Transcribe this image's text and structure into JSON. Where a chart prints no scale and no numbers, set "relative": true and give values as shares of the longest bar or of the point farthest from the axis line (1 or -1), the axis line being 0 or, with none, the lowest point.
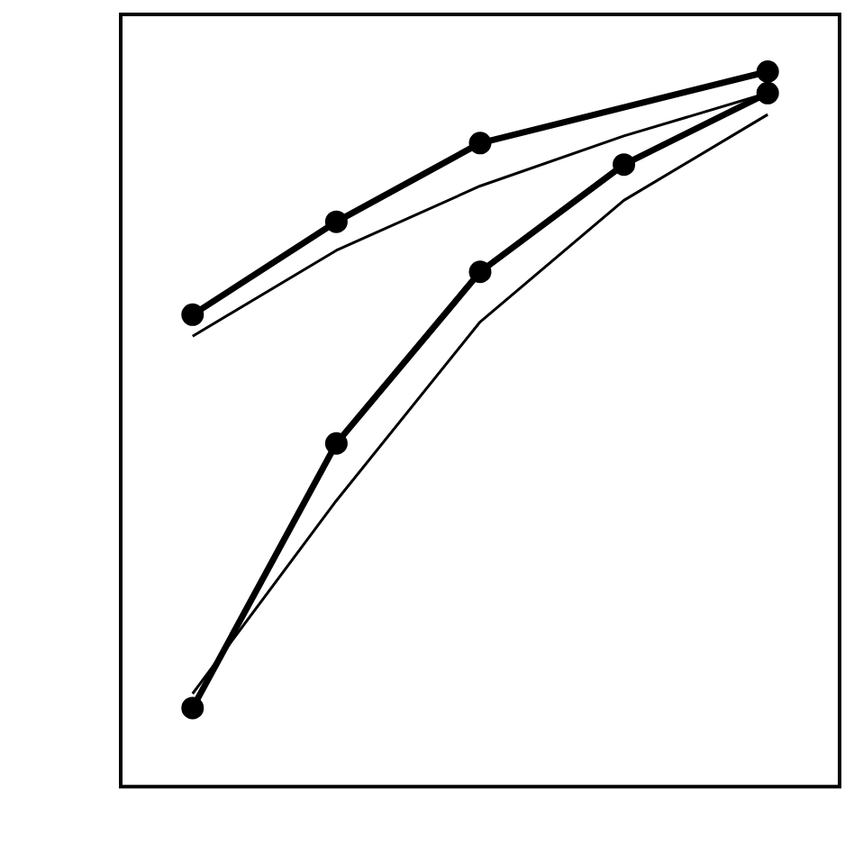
{
  "chart_data": {
    "type": "line",
    "relative": true,
    "categories": [
      null,
      null,
      null,
      null,
      null
    ],
    "grid": false,
    "legend": false,
    "series": [
      {
        "color": "#000000",
        "marker": "circle",
        "values": [
          0.66,
          0.79,
          0.9,
          null,
          1.0
        ]
      },
      {
        "color": "#000000",
        "marker": "none",
        "values": [
          0.63,
          0.75,
          0.84,
          0.91,
          0.97
        ]
      },
      {
        "color": "#000000",
        "marker": "circle",
        "values": [
          0.11,
          0.48,
          0.72,
          0.87,
          0.97
        ]
      },
      {
        "color": "#000000",
        "marker": "none",
        "values": [
          0.13,
          0.4,
          0.65,
          0.82,
          0.94
        ]
      }
    ]
  }
}
